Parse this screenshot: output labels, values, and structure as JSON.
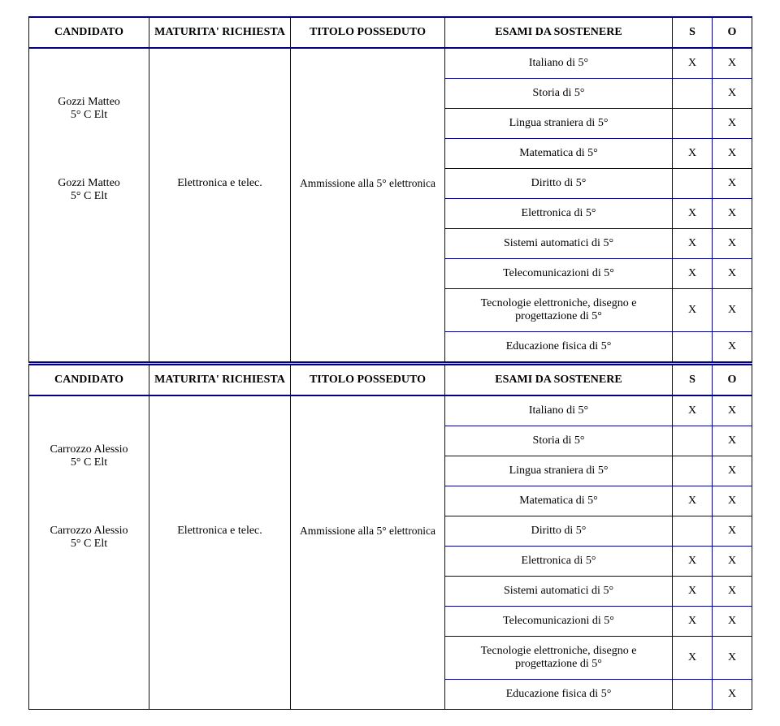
{
  "headers": {
    "candidato": "CANDIDATO",
    "maturita": "MATURITA' RICHIESTA",
    "titolo": "TITOLO POSSEDUTO",
    "esami": "ESAMI DA SOSTENERE",
    "s": "S",
    "o": "O"
  },
  "sections": [
    {
      "candidate": "Gozzi Matteo\n5° C Elt",
      "maturita": "Elettronica e telec.",
      "titolo": "Ammissione alla  5° elettronica",
      "rows": [
        {
          "exam": "Italiano di 5°",
          "s": "X",
          "o": "X"
        },
        {
          "exam": "Storia di 5°",
          "s": "",
          "o": "X"
        },
        {
          "exam": "Lingua straniera di 5°",
          "s": "",
          "o": "X"
        },
        {
          "exam": "Matematica di 5°",
          "s": "X",
          "o": "X"
        },
        {
          "exam": "Diritto di 5°",
          "s": "",
          "o": "X"
        },
        {
          "exam": "Elettronica di 5°",
          "s": "X",
          "o": "X"
        },
        {
          "exam": "Sistemi automatici di 5°",
          "s": "X",
          "o": "X"
        },
        {
          "exam": "Telecomunicazioni di 5°",
          "s": "X",
          "o": "X"
        },
        {
          "exam": "Tecnologie elettroniche, disegno e progettazione di 5°",
          "s": "X",
          "o": "X"
        },
        {
          "exam": "Educazione fisica di 5°",
          "s": "",
          "o": "X"
        }
      ]
    },
    {
      "candidate": "Carrozzo Alessio\n5° C  Elt",
      "maturita": "Elettronica e telec.",
      "titolo": "Ammissione alla  5° elettronica",
      "rows": [
        {
          "exam": "Italiano di 5°",
          "s": "X",
          "o": "X"
        },
        {
          "exam": "Storia di 5°",
          "s": "",
          "o": "X"
        },
        {
          "exam": "Lingua straniera di 5°",
          "s": "",
          "o": "X"
        },
        {
          "exam": "Matematica di 5°",
          "s": "X",
          "o": "X"
        },
        {
          "exam": "Diritto di 5°",
          "s": "",
          "o": "X"
        },
        {
          "exam": "Elettronica di 5°",
          "s": "X",
          "o": "X"
        },
        {
          "exam": "Sistemi automatici di 5°",
          "s": "X",
          "o": "X"
        },
        {
          "exam": "Telecomunicazioni di 5°",
          "s": "X",
          "o": "X"
        },
        {
          "exam": "Tecnologie elettroniche, disegno e progettazione di 5°",
          "s": "X",
          "o": "X"
        },
        {
          "exam": "Educazione fisica di 5°",
          "s": "",
          "o": "X"
        }
      ]
    }
  ]
}
